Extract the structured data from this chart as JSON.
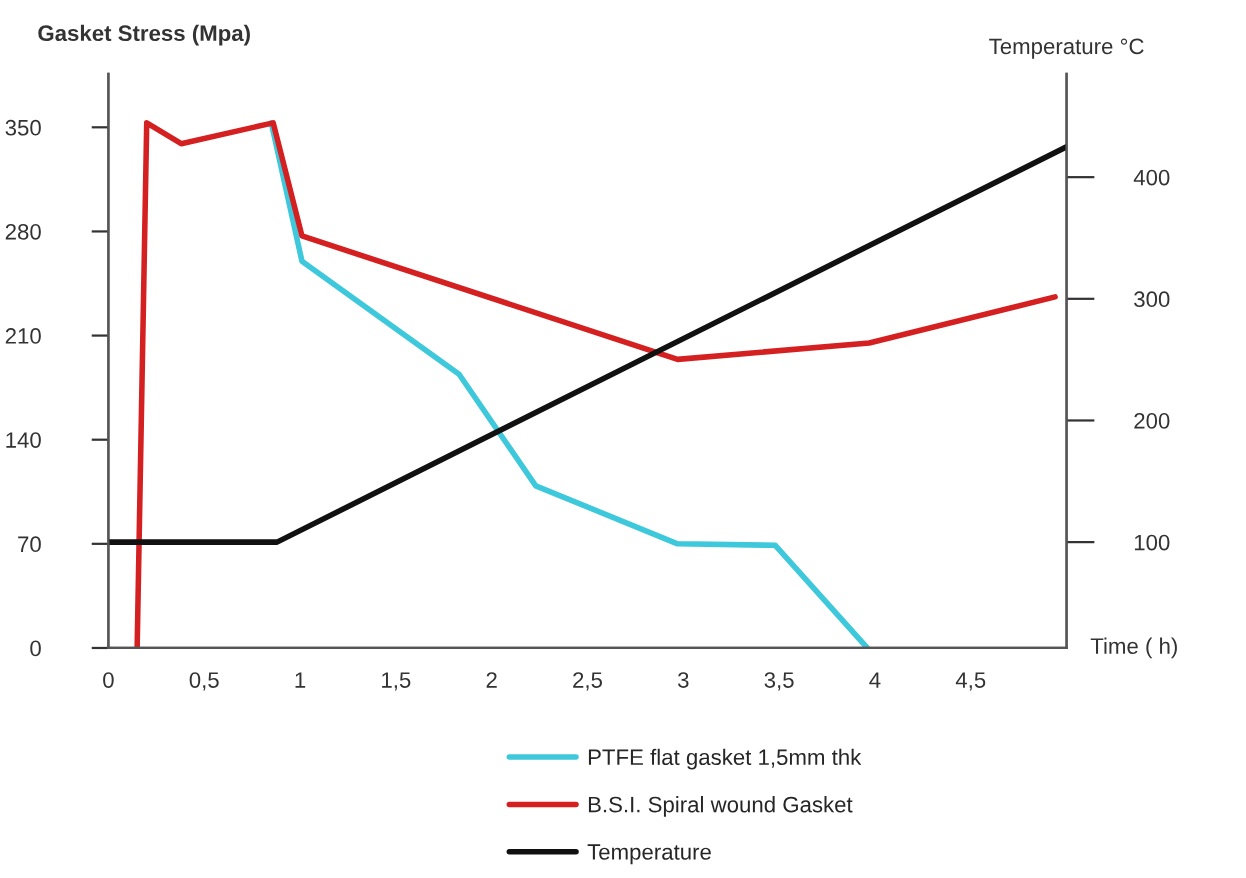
{
  "chart_data": {
    "type": "line",
    "xlabel": "Time ( h)",
    "ylabel": "Gasket Stress (Mpa)",
    "y2label": "Temperature °C",
    "xlim": [
      0,
      5
    ],
    "xticks": [
      0,
      {
        "value": 0.5,
        "label": "0,5"
      },
      1,
      {
        "value": 1.5,
        "label": "1,5"
      },
      2,
      {
        "value": 2.5,
        "label": "2,5"
      },
      3,
      {
        "value": 3.5,
        "label": "3,5"
      },
      4,
      {
        "value": 4.5,
        "label": "4,5"
      }
    ],
    "ylim": [
      0,
      386
    ],
    "yticks": [
      0,
      70,
      140,
      210,
      280,
      350
    ],
    "y2lim": [
      13,
      485
    ],
    "y2ticks": [
      100,
      200,
      300,
      400
    ],
    "series": [
      {
        "name": "PTFE flat gasket 1,5mm thk",
        "color": "#3ec8dc",
        "x": [
          0.85,
          1.01,
          1.83,
          2.23,
          2.97,
          3.48,
          3.96
        ],
        "values": [
          353,
          260,
          184,
          109,
          70,
          69,
          0
        ]
      },
      {
        "name": "B.S.I. Spiral wound Gasket",
        "color": "#d42020",
        "x": [
          0.15,
          0.2,
          0.38,
          0.86,
          1.01,
          2.97,
          3.97,
          4.94
        ],
        "values": [
          0,
          353,
          339,
          353,
          277,
          194,
          205,
          236
        ]
      },
      {
        "name": "Temperature",
        "color": "#111111",
        "axis": "y2",
        "x": [
          0,
          0.88,
          5
        ],
        "values": [
          100,
          100,
          425
        ]
      }
    ],
    "legend": "bottom",
    "grid": false,
    "marker": "none",
    "line_style": "solid"
  }
}
